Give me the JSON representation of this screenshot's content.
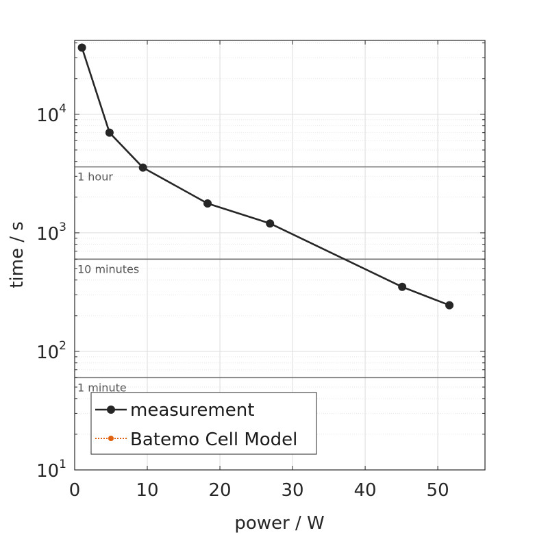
{
  "chart_data": {
    "type": "line",
    "xlabel": "power / W",
    "ylabel": "time / s",
    "xlim": [
      0,
      56.5
    ],
    "ylim": [
      10,
      42000
    ],
    "yscale": "log",
    "xticks": [
      0,
      10,
      20,
      30,
      40,
      50
    ],
    "yticks": [
      {
        "base": "10",
        "exp": "1",
        "value": 10
      },
      {
        "base": "10",
        "exp": "2",
        "value": 100
      },
      {
        "base": "10",
        "exp": "3",
        "value": 1000
      },
      {
        "base": "10",
        "exp": "4",
        "value": 10000
      }
    ],
    "grid": true,
    "series": [
      {
        "name": "measurement",
        "color": "#262626",
        "marker": "circle",
        "line_style": "solid",
        "x": [
          1.0,
          4.8,
          9.4,
          18.3,
          26.9,
          45.1,
          51.6
        ],
        "y": [
          36500,
          7000,
          3550,
          1770,
          1200,
          350,
          245
        ]
      },
      {
        "name": "Batemo Cell Model",
        "color": "#e0610f",
        "marker": "circle",
        "line_style": "dotted",
        "x": [],
        "y": []
      }
    ],
    "reference_lines": [
      {
        "label": "1 hour",
        "y": 3600
      },
      {
        "label": "10 minutes",
        "y": 600
      },
      {
        "label": "1 minute",
        "y": 60
      }
    ],
    "legend_position": "bottom-left"
  }
}
